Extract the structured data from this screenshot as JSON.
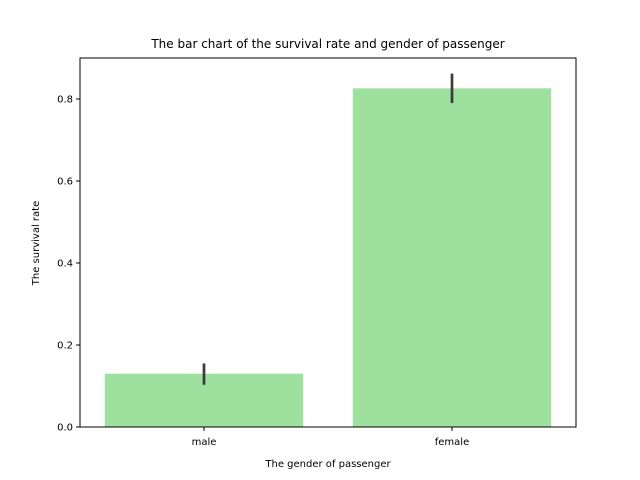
{
  "chart_data": {
    "type": "bar",
    "title": "The bar chart of the survival rate and gender of passenger",
    "xlabel": "The gender of passenger",
    "ylabel": "The survival rate",
    "categories": [
      "male",
      "female"
    ],
    "values": [
      0.13,
      0.826
    ],
    "error_bars": [
      [
        0.103,
        0.155
      ],
      [
        0.79,
        0.862
      ]
    ],
    "ylim": [
      0,
      0.9
    ],
    "yticks": [
      0.0,
      0.2,
      0.4,
      0.6,
      0.8
    ],
    "ytick_labels": [
      "0.0",
      "0.2",
      "0.4",
      "0.6",
      "0.8"
    ],
    "grid": false,
    "colors": {
      "bar": "#9ee09e",
      "error": "#3c3c3c",
      "axis": "#000000"
    }
  }
}
